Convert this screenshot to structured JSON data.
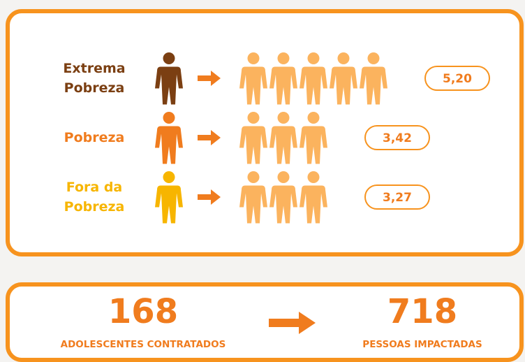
{
  "rows": [
    {
      "label": "Extrema Pobreza",
      "value": 5.2,
      "value_label": "5,20",
      "color": "#7b3f12"
    },
    {
      "label": "Pobreza",
      "value": 3.42,
      "value_label": "3,42",
      "color": "#f07c1e"
    },
    {
      "label": "Fora da Pobreza",
      "value": 3.27,
      "value_label": "3,27",
      "color": "#f7b500"
    }
  ],
  "summary": {
    "from_value": "168",
    "from_label": "ADOLESCENTES CONTRATADOS",
    "to_value": "718",
    "to_label": "PESSOAS IMPACTADAS"
  }
}
